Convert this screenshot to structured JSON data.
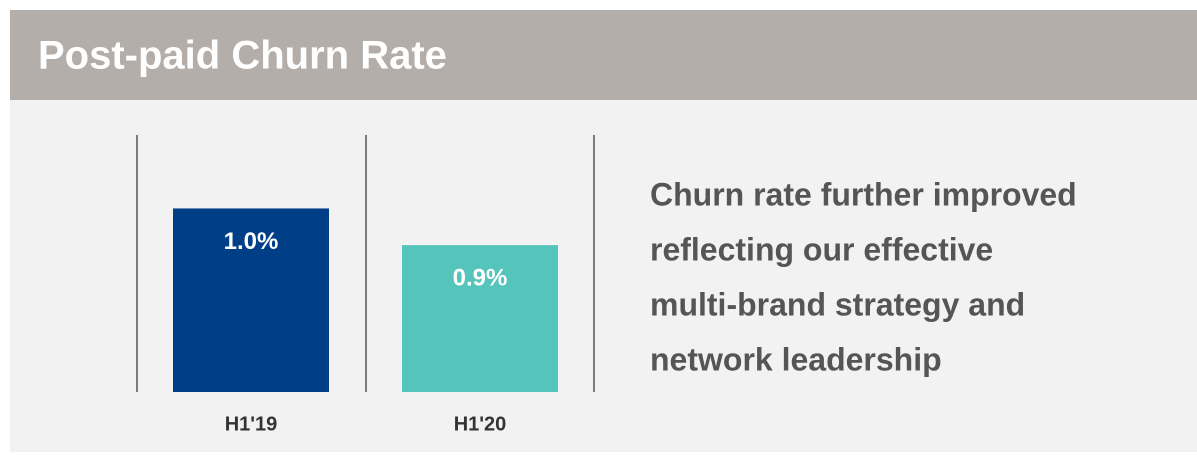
{
  "chart_data": {
    "type": "bar",
    "title": "Post-paid Churn Rate",
    "categories": [
      "H1'19",
      "H1'20"
    ],
    "values": [
      1.0,
      0.9
    ],
    "value_labels": [
      "1.0%",
      "0.9%"
    ],
    "colors": [
      "#003f87",
      "#55c4bb"
    ],
    "ylim": [
      0.5,
      1.2
    ],
    "annotation": [
      "Churn rate further improved",
      "reflecting our effective",
      "multi-brand strategy and",
      "network leadership"
    ]
  }
}
